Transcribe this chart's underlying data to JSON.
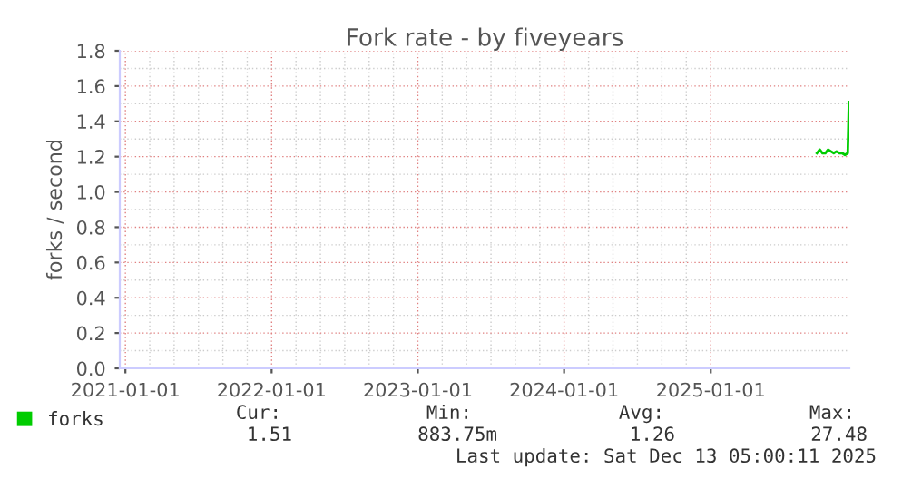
{
  "chart_data": {
    "type": "line",
    "title": "Fork rate - by fiveyears",
    "ylabel": "forks / second",
    "x": [
      "2025-09-23",
      "2025-09-30",
      "2025-10-07",
      "2025-10-14",
      "2025-10-21",
      "2025-10-28",
      "2025-11-04",
      "2025-11-11",
      "2025-11-18",
      "2025-11-25",
      "2025-12-02",
      "2025-12-09",
      "2025-12-12"
    ],
    "series": [
      {
        "name": "forks",
        "color": "#00cc00",
        "values": [
          1.22,
          1.24,
          1.22,
          1.22,
          1.24,
          1.23,
          1.22,
          1.23,
          1.22,
          1.22,
          1.21,
          1.22,
          1.51
        ]
      }
    ],
    "xlim": [
      "2020-12-18",
      "2025-12-13"
    ],
    "xticks": [
      "2021-01-01",
      "2022-01-01",
      "2023-01-01",
      "2024-01-01",
      "2025-01-01"
    ],
    "ylim": [
      0,
      1.8
    ],
    "yticks": [
      {
        "value": 0,
        "label": "0.0"
      },
      {
        "value": 0.2,
        "label": "0.2"
      },
      {
        "value": 0.4,
        "label": "0.4"
      },
      {
        "value": 0.6,
        "label": "0.6"
      },
      {
        "value": 0.8,
        "label": "0.8"
      },
      {
        "value": 1.0,
        "label": "1.0"
      },
      {
        "value": 1.2,
        "label": "1.2"
      },
      {
        "value": 1.4,
        "label": "1.4"
      },
      {
        "value": 1.6,
        "label": "1.6"
      },
      {
        "value": 1.8,
        "label": "1.8"
      }
    ],
    "grid": true,
    "legend": "bottom left",
    "marker": "none",
    "line_style": "solid",
    "annotations": [
      "Cur:",
      "1.51",
      "Min:",
      "883.75m",
      "Avg:",
      "1.26",
      "Max:",
      "27.48",
      "Last update: Sat Dec 13 05:00:11 2025"
    ]
  }
}
